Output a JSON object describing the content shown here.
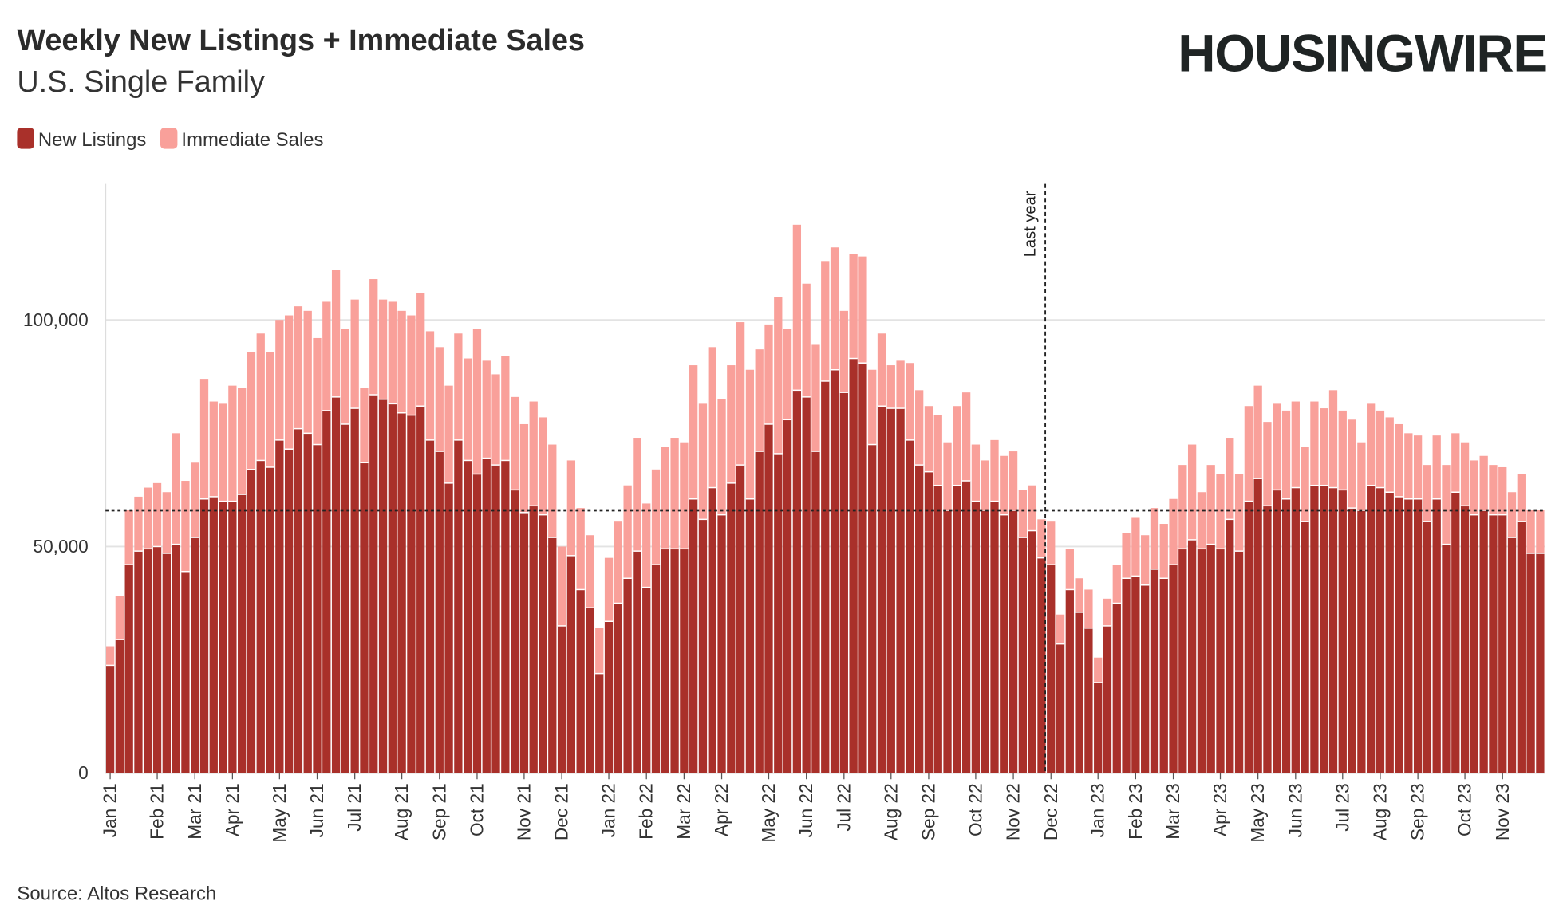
{
  "chart_data": {
    "type": "stacked_bar",
    "title": "Weekly New Listings + Immediate Sales",
    "subtitle": "U.S. Single Family",
    "brand": "HOUSINGWIRE",
    "source": "Source: Altos Research",
    "categories": [
      "Jan 21",
      null,
      null,
      null,
      null,
      "Feb 21",
      null,
      null,
      null,
      "Mar 21",
      null,
      null,
      null,
      "Apr 21",
      null,
      null,
      null,
      null,
      "May 21",
      null,
      null,
      null,
      "Jun 21",
      null,
      null,
      null,
      "Jul 21",
      null,
      null,
      null,
      null,
      "Aug 21",
      null,
      null,
      null,
      "Sep 21",
      null,
      null,
      null,
      "Oct 21",
      null,
      null,
      null,
      null,
      "Nov 21",
      null,
      null,
      null,
      "Dec 21",
      null,
      null,
      null,
      null,
      "Jan 22",
      null,
      null,
      null,
      "Feb 22",
      null,
      null,
      null,
      "Mar 22",
      null,
      null,
      null,
      "Apr 22",
      null,
      null,
      null,
      null,
      "May 22",
      null,
      null,
      null,
      "Jun 22",
      null,
      null,
      null,
      "Jul 22",
      null,
      null,
      null,
      null,
      "Aug 22",
      null,
      null,
      null,
      "Sep 22",
      null,
      null,
      null,
      null,
      "Oct 22",
      null,
      null,
      null,
      "Nov 22",
      null,
      null,
      null,
      "Dec 22",
      null,
      null,
      null,
      null,
      "Jan 23",
      null,
      null,
      null,
      "Feb 23",
      null,
      null,
      null,
      "Mar 23",
      null,
      null,
      null,
      null,
      "Apr 23",
      null,
      null,
      null,
      "May 23",
      null,
      null,
      null,
      "Jun 23",
      null,
      null,
      null,
      null,
      "Jul 23",
      null,
      null,
      null,
      "Aug 23",
      null,
      null,
      null,
      "Sep 23",
      null,
      null,
      null,
      null,
      "Oct 23",
      null,
      null,
      null,
      "Nov 23",
      null,
      null,
      null,
      null
    ],
    "series": [
      {
        "name": "New Listings",
        "color": "#a9302a",
        "values": [
          23800,
          29500,
          46000,
          49000,
          49500,
          50000,
          48500,
          50500,
          44500,
          52000,
          60500,
          61000,
          60000,
          60000,
          61500,
          67000,
          69000,
          67500,
          73500,
          71500,
          76000,
          75000,
          72500,
          80000,
          83000,
          77000,
          80500,
          68500,
          83500,
          82500,
          81500,
          79500,
          79000,
          81000,
          73500,
          71000,
          64000,
          73500,
          69000,
          66000,
          69500,
          68000,
          69000,
          62500,
          57500,
          59000,
          57000,
          52000,
          32500,
          48000,
          40500,
          36500,
          22000,
          33500,
          37500,
          43000,
          49000,
          41000,
          46000,
          49500,
          49500,
          49500,
          60500,
          56000,
          63000,
          57000,
          64000,
          68000,
          60500,
          71000,
          77000,
          70500,
          78000,
          84500,
          83000,
          71000,
          86500,
          89000,
          84000,
          91500,
          90500,
          72500,
          81000,
          80500,
          80500,
          73500,
          68000,
          66500,
          63500,
          58000,
          63500,
          64500,
          60000,
          58000,
          60000,
          57000,
          58000,
          52000,
          53500,
          47500,
          46000,
          28500,
          40500,
          35500,
          32000,
          20000,
          32500,
          37500,
          43000,
          43500,
          41500,
          45000,
          43000,
          46000,
          49500,
          51500,
          49500,
          50500,
          49500,
          56000,
          49000,
          60000,
          65000,
          59000,
          62500,
          60500,
          63000,
          55500,
          63500,
          63500,
          63000,
          62500,
          58500,
          58000,
          63500,
          63000,
          62000,
          61000,
          60500,
          60500,
          55500,
          60500,
          50500,
          62000,
          59000,
          57000,
          58000,
          57000,
          57000,
          52000,
          55500,
          48500,
          48500
        ]
      },
      {
        "name": "Immediate Sales",
        "color": "#f9a09a",
        "values": [
          4200,
          9500,
          12000,
          12000,
          13500,
          14000,
          13500,
          24500,
          20000,
          16500,
          26500,
          21000,
          21500,
          25500,
          23500,
          26000,
          28000,
          25500,
          26500,
          29500,
          27000,
          27000,
          23500,
          24000,
          28000,
          21000,
          24000,
          16500,
          25500,
          22000,
          22500,
          22500,
          22000,
          25000,
          24000,
          23000,
          21500,
          23500,
          22500,
          32000,
          21500,
          20000,
          23000,
          20500,
          19500,
          23000,
          21500,
          20500,
          17500,
          21000,
          18000,
          16000,
          10000,
          14000,
          18000,
          20500,
          25000,
          18500,
          21000,
          22500,
          24500,
          23500,
          29500,
          25500,
          31000,
          25500,
          26000,
          31500,
          28500,
          22500,
          22000,
          34500,
          20000,
          36500,
          25000,
          23500,
          26500,
          27000,
          18000,
          23000,
          23500,
          16500,
          16000,
          9500,
          10500,
          17000,
          16500,
          14500,
          15500,
          15000,
          17500,
          19500,
          12500,
          11000,
          13500,
          13000,
          13000,
          10500,
          10000,
          8500,
          9500,
          6500,
          9000,
          7500,
          8500,
          5500,
          6000,
          8500,
          10000,
          13000,
          11000,
          13500,
          12000,
          14500,
          18500,
          21000,
          12500,
          17500,
          16500,
          18000,
          17000,
          21000,
          20500,
          18500,
          19000,
          19500,
          19000,
          16500,
          18500,
          17000,
          21500,
          17500,
          19500,
          15000,
          18000,
          17000,
          16500,
          16000,
          14500,
          14000,
          12500,
          14000,
          17500,
          13000,
          14000,
          12000,
          12000,
          11000,
          10500,
          10000,
          10500,
          9500,
          9500
        ]
      }
    ],
    "ylim": [
      0,
      130000
    ],
    "yticks": [
      0,
      {
        "value": 50000,
        "label": "50,000"
      },
      {
        "value": 100000,
        "label": "100,000"
      }
    ],
    "grid": true,
    "reference_line": 58000,
    "annotation": {
      "text": "Last year",
      "at": 100
    }
  }
}
